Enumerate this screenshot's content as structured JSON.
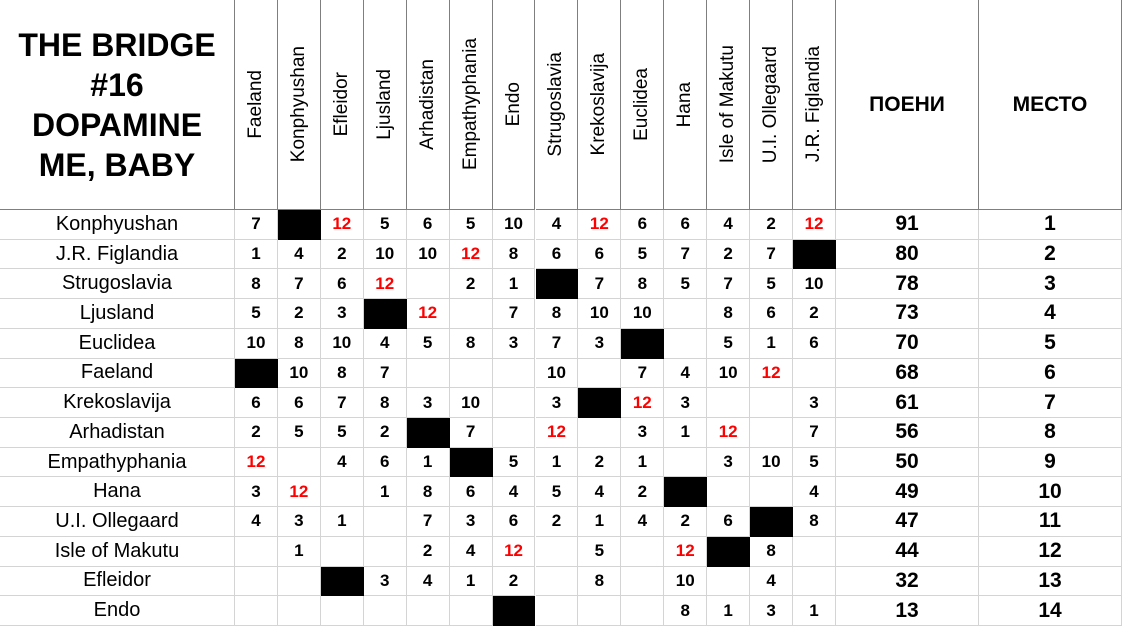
{
  "title_lines": [
    "THE BRIDGE",
    "#16",
    "DOPAMINE",
    "ME, BABY"
  ],
  "highlight_color": "#ff0000",
  "table": {
    "columns": [
      "Faeland",
      "Konphyushan",
      "Efleidor",
      "Ljusland",
      "Arhadistan",
      "Empathyphania",
      "Endo",
      "Strugoslavia",
      "Krekoslavija",
      "Euclidea",
      "Hana",
      "Isle of Makutu",
      "U.I. Ollegaard",
      "J.R. Figlandia"
    ],
    "points_header": "ПОЕНИ",
    "place_header": "МЕСТО",
    "rows": [
      {
        "country": "Konphyushan",
        "votes": [
          7,
          null,
          12,
          5,
          6,
          5,
          10,
          4,
          12,
          6,
          6,
          4,
          2,
          12
        ],
        "points": 91,
        "place": 1
      },
      {
        "country": "J.R. Figlandia",
        "votes": [
          1,
          4,
          2,
          10,
          10,
          12,
          8,
          6,
          6,
          5,
          7,
          2,
          7,
          null
        ],
        "points": 80,
        "place": 2
      },
      {
        "country": "Strugoslavia",
        "votes": [
          8,
          7,
          6,
          12,
          null,
          2,
          1,
          null,
          7,
          8,
          5,
          7,
          5,
          10
        ],
        "points": 78,
        "place": 3
      },
      {
        "country": "Ljusland",
        "votes": [
          5,
          2,
          3,
          null,
          12,
          null,
          7,
          8,
          10,
          10,
          null,
          8,
          6,
          2
        ],
        "points": 73,
        "place": 4
      },
      {
        "country": "Euclidea",
        "votes": [
          10,
          8,
          10,
          4,
          5,
          8,
          3,
          7,
          3,
          null,
          null,
          5,
          1,
          6
        ],
        "points": 70,
        "place": 5
      },
      {
        "country": "Faeland",
        "votes": [
          null,
          10,
          8,
          7,
          null,
          null,
          null,
          10,
          null,
          7,
          4,
          10,
          12,
          null
        ],
        "points": 68,
        "place": 6
      },
      {
        "country": "Krekoslavija",
        "votes": [
          6,
          6,
          7,
          8,
          3,
          10,
          null,
          3,
          null,
          12,
          3,
          null,
          null,
          3
        ],
        "points": 61,
        "place": 7
      },
      {
        "country": "Arhadistan",
        "votes": [
          2,
          5,
          5,
          2,
          null,
          7,
          null,
          12,
          null,
          3,
          1,
          12,
          null,
          7
        ],
        "points": 56,
        "place": 8
      },
      {
        "country": "Empathyphania",
        "votes": [
          12,
          null,
          4,
          6,
          1,
          null,
          5,
          1,
          2,
          1,
          null,
          3,
          10,
          5
        ],
        "points": 50,
        "place": 9
      },
      {
        "country": "Hana",
        "votes": [
          3,
          12,
          null,
          1,
          8,
          6,
          4,
          5,
          4,
          2,
          null,
          null,
          null,
          4
        ],
        "points": 49,
        "place": 10
      },
      {
        "country": "U.I. Ollegaard",
        "votes": [
          4,
          3,
          1,
          null,
          7,
          3,
          6,
          2,
          1,
          4,
          2,
          6,
          null,
          8
        ],
        "points": 47,
        "place": 11
      },
      {
        "country": "Isle of Makutu",
        "votes": [
          null,
          1,
          null,
          null,
          2,
          4,
          12,
          null,
          5,
          null,
          12,
          null,
          8,
          null
        ],
        "points": 44,
        "place": 12
      },
      {
        "country": "Efleidor",
        "votes": [
          null,
          null,
          null,
          3,
          4,
          1,
          2,
          null,
          8,
          null,
          10,
          null,
          4,
          null
        ],
        "points": 32,
        "place": 13
      },
      {
        "country": "Endo",
        "votes": [
          null,
          null,
          null,
          null,
          null,
          null,
          null,
          null,
          null,
          null,
          8,
          1,
          3,
          1
        ],
        "points": 13,
        "place": 14
      }
    ]
  }
}
